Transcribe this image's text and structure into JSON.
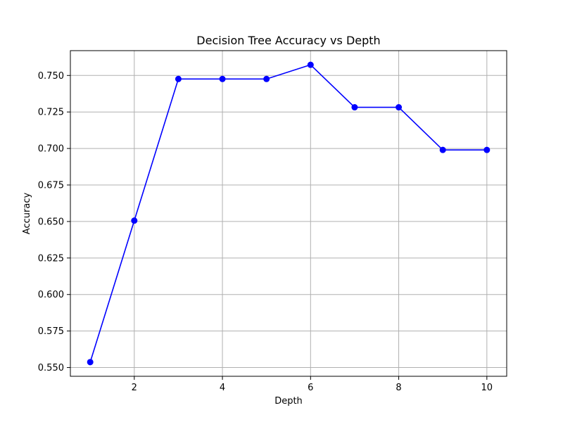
{
  "chart_data": {
    "type": "line",
    "title": "Decision Tree Accuracy vs Depth",
    "xlabel": "Depth",
    "ylabel": "Accuracy",
    "x": [
      1,
      2,
      3,
      4,
      5,
      6,
      7,
      8,
      9,
      10
    ],
    "series": [
      {
        "values": [
          0.5537,
          0.6506,
          0.7476,
          0.7476,
          0.7476,
          0.7573,
          0.7282,
          0.7282,
          0.699,
          0.699
        ],
        "color": "#0000ff",
        "marker": "circle"
      }
    ],
    "xlim": [
      0.55,
      10.45
    ],
    "ylim": [
      0.544,
      0.767
    ],
    "xticks": [
      2,
      4,
      6,
      8,
      10
    ],
    "xtick_labels": [
      "2",
      "4",
      "6",
      "8",
      "10"
    ],
    "yticks": [
      0.55,
      0.575,
      0.6,
      0.625,
      0.65,
      0.675,
      0.7,
      0.725,
      0.75
    ],
    "ytick_labels": [
      "0.550",
      "0.575",
      "0.600",
      "0.625",
      "0.650",
      "0.675",
      "0.700",
      "0.725",
      "0.750"
    ],
    "grid": true,
    "grid_color": "#b0b0b0",
    "legend": false
  }
}
